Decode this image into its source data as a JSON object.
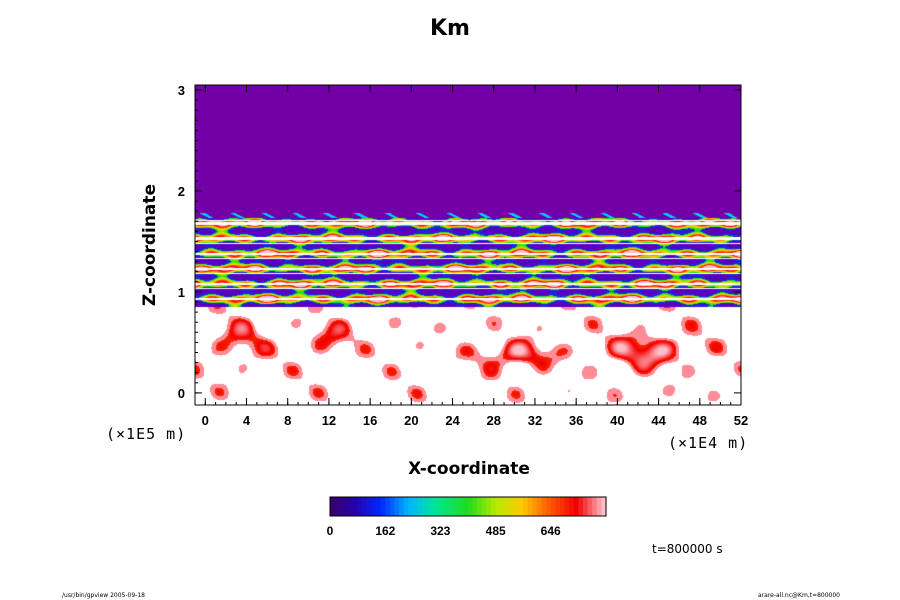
{
  "chart_data": {
    "type": "heatmap",
    "title": "Km",
    "xlabel": "X-coordinate",
    "ylabel": "Z-coordinate",
    "x_unit_label": "(×1E4 m)",
    "y_unit_label": "(×1E5 m)",
    "x_ticks": [
      0,
      4,
      8,
      12,
      16,
      20,
      24,
      28,
      32,
      36,
      40,
      44,
      48,
      52
    ],
    "y_ticks": [
      0,
      1,
      2,
      3
    ],
    "xlim": [
      -1,
      52
    ],
    "ylim": [
      -0.12,
      3.05
    ],
    "colorbar": {
      "ticks": [
        0,
        162,
        323,
        485,
        646
      ],
      "range": [
        0,
        808
      ]
    },
    "time_label": "t=800000 s",
    "colors": {
      "background_field": "#7300a6",
      "low": "#2a00a0",
      "mid": "#00e050",
      "high": "#ff1010",
      "top": "#ffb0b8"
    },
    "features": [
      {
        "name": "uniform low layer",
        "z_range": [
          1.75,
          3.05
        ],
        "value": 0
      },
      {
        "name": "turbulent bands",
        "z_range": [
          0.85,
          1.72
        ]
      },
      {
        "name": "boundary-layer plumes",
        "z_range": [
          -0.12,
          0.85
        ]
      }
    ]
  },
  "footer": {
    "left": "/usr/bin/gpview 2005-09-18",
    "right": "arare-all.nc@Km,t=800000"
  }
}
